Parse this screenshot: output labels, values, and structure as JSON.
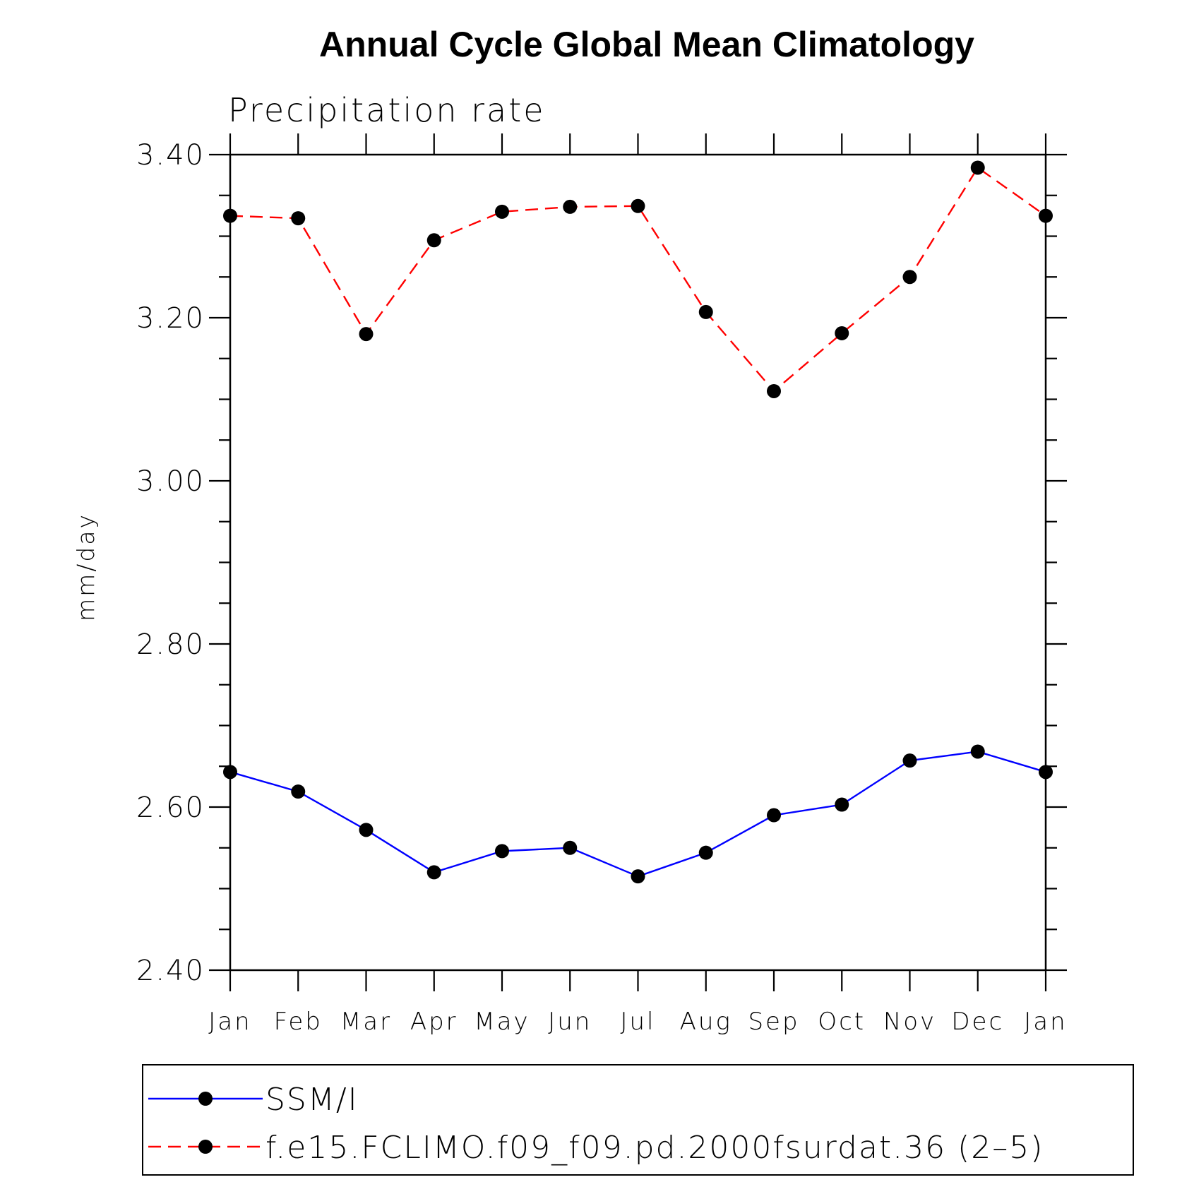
{
  "chart_data": {
    "type": "line",
    "title": "Annual Cycle Global Mean Climatology",
    "subtitle": "Precipitation rate",
    "ylabel": "mm/day",
    "xlabel": "",
    "categories": [
      "Jan",
      "Feb",
      "Mar",
      "Apr",
      "May",
      "Jun",
      "Jul",
      "Aug",
      "Sep",
      "Oct",
      "Nov",
      "Dec",
      "Jan"
    ],
    "ylim": [
      2.4,
      3.4
    ],
    "yticks": [
      "2.40",
      "2.60",
      "2.80",
      "3.00",
      "3.20",
      "3.40"
    ],
    "grid": false,
    "legend_position": "bottom",
    "series": [
      {
        "name": "SSM/I",
        "color": "#0000ff",
        "line_style": "solid",
        "marker": "filled-circle",
        "values": [
          2.643,
          2.619,
          2.572,
          2.52,
          2.546,
          2.55,
          2.515,
          2.544,
          2.59,
          2.603,
          2.657,
          2.668,
          2.643
        ]
      },
      {
        "name": "f.e15.FCLIMO.f09_f09.pd.2000fsurdat.36 (2–5)",
        "color": "#ff0000",
        "line_style": "dashed",
        "marker": "filled-circle",
        "values": [
          3.325,
          3.322,
          3.18,
          3.295,
          3.33,
          3.336,
          3.337,
          3.207,
          3.11,
          3.181,
          3.25,
          3.384,
          3.325
        ]
      }
    ]
  }
}
